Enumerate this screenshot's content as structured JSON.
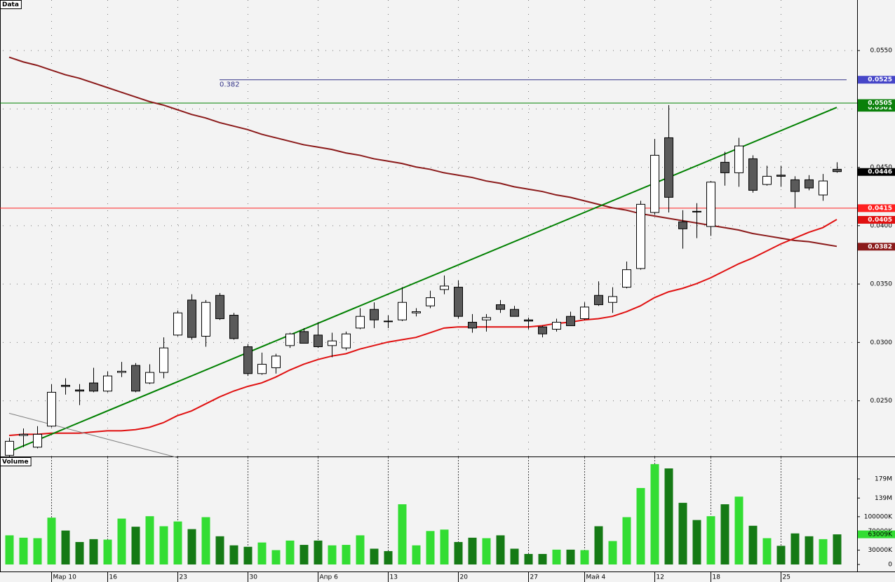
{
  "chart_data": [
    {
      "type": "candlestick",
      "title": "Data",
      "categories": [
        null,
        null,
        null,
        "Мар 10",
        null,
        null,
        null,
        "16",
        null,
        null,
        null,
        null,
        "23",
        null,
        null,
        null,
        null,
        "30",
        null,
        null,
        null,
        null,
        "Апр 6",
        null,
        null,
        null,
        null,
        "13",
        null,
        null,
        null,
        null,
        "20",
        null,
        null,
        null,
        null,
        "27",
        null,
        null,
        null,
        "Май 4",
        null,
        null,
        null,
        null,
        "12",
        null,
        null,
        null,
        "18",
        null,
        null,
        null,
        null,
        "25",
        null,
        null,
        null,
        null
      ],
      "open": [
        0.0203,
        0.022,
        0.021,
        0.0228,
        0.0263,
        0.0259,
        0.0265,
        0.0258,
        0.0274,
        0.028,
        0.0265,
        0.0274,
        0.0306,
        0.0336,
        0.0305,
        0.034,
        0.0323,
        0.0296,
        0.0273,
        0.0278,
        0.0297,
        0.0309,
        0.0306,
        0.0297,
        0.0295,
        0.0312,
        0.0328,
        0.0318,
        0.0319,
        0.0325,
        0.0331,
        0.0345,
        0.0347,
        0.0317,
        0.0319,
        0.0332,
        0.0328,
        0.0319,
        0.0313,
        0.0311,
        0.0322,
        0.032,
        0.034,
        0.0334,
        0.0347,
        0.0363,
        0.0411,
        0.0475,
        0.0403,
        0.0412,
        0.0399,
        0.0454,
        0.0445,
        0.0457,
        0.0435,
        0.0443,
        0.0439,
        0.0439,
        0.0426,
        0.0448
      ],
      "high": [
        0.0218,
        0.0226,
        0.0228,
        0.0264,
        0.0269,
        0.0264,
        0.0278,
        0.0275,
        0.0283,
        0.0282,
        0.0281,
        0.0304,
        0.0327,
        0.0341,
        0.0336,
        0.0342,
        0.0325,
        0.0298,
        0.0291,
        0.029,
        0.0308,
        0.0312,
        0.0317,
        0.0308,
        0.0309,
        0.0329,
        0.0334,
        0.0323,
        0.0347,
        0.0329,
        0.0344,
        0.0357,
        0.0353,
        0.0324,
        0.0324,
        0.0336,
        0.0331,
        0.0321,
        0.0314,
        0.032,
        0.0326,
        0.0334,
        0.0352,
        0.0347,
        0.0369,
        0.0421,
        0.0474,
        0.0503,
        0.0413,
        0.0419,
        0.0438,
        0.0463,
        0.0475,
        0.046,
        0.0451,
        0.0451,
        0.0442,
        0.0443,
        0.0444,
        0.0454
      ],
      "low": [
        0.0202,
        0.021,
        0.0209,
        0.0227,
        0.0255,
        0.0246,
        0.0257,
        0.0257,
        0.027,
        0.0257,
        0.0264,
        0.0269,
        0.0305,
        0.0302,
        0.0296,
        0.0319,
        0.0302,
        0.0271,
        0.0272,
        0.0273,
        0.0295,
        0.0299,
        0.0295,
        0.0287,
        0.0293,
        0.0311,
        0.0312,
        0.0312,
        0.0318,
        0.0322,
        0.0329,
        0.0341,
        0.032,
        0.0308,
        0.0309,
        0.0325,
        0.0322,
        0.0311,
        0.0304,
        0.0309,
        0.0314,
        0.0319,
        0.0331,
        0.0325,
        0.0346,
        0.0362,
        0.0409,
        0.0411,
        0.038,
        0.0389,
        0.0391,
        0.0434,
        0.0433,
        0.0428,
        0.0434,
        0.0433,
        0.0415,
        0.043,
        0.0421,
        0.0445
      ],
      "close": [
        0.0215,
        0.0221,
        0.0221,
        0.0257,
        0.0262,
        0.0258,
        0.0258,
        0.0271,
        0.0275,
        0.0258,
        0.0274,
        0.0295,
        0.0325,
        0.0304,
        0.0334,
        0.032,
        0.0303,
        0.0273,
        0.0281,
        0.0288,
        0.0307,
        0.0299,
        0.0296,
        0.0301,
        0.0307,
        0.0322,
        0.0319,
        0.0318,
        0.0334,
        0.0326,
        0.0338,
        0.0348,
        0.0322,
        0.0312,
        0.0321,
        0.0328,
        0.0322,
        0.0318,
        0.0307,
        0.0317,
        0.0314,
        0.033,
        0.0332,
        0.0339,
        0.0362,
        0.0418,
        0.046,
        0.0424,
        0.0397,
        0.0412,
        0.0437,
        0.0445,
        0.0468,
        0.043,
        0.0442,
        0.0442,
        0.0429,
        0.0432,
        0.0438,
        0.0446
      ],
      "up_color": "#ffffff",
      "down_color": "#5a5a5a",
      "ylim": [
        0.0202,
        0.0593
      ],
      "yticks": [
        {
          "value": 0.025,
          "label": "0.0250"
        },
        {
          "value": 0.03,
          "label": "0.0300"
        },
        {
          "value": 0.035,
          "label": "0.0350"
        },
        {
          "value": 0.04,
          "label": "0.0400"
        },
        {
          "value": 0.045,
          "label": "0.0450"
        },
        {
          "value": 0.05,
          "label": "0.0500"
        },
        {
          "value": 0.055,
          "label": "0.0550"
        }
      ],
      "grid": true,
      "overlays": [
        {
          "color": "#8b1a1a",
          "values": [
            0.0544,
            0.054,
            0.0537,
            0.0533,
            0.0529,
            0.0526,
            0.0522,
            0.0518,
            0.0514,
            0.051,
            0.0506,
            0.0503,
            0.0499,
            0.0495,
            0.0492,
            0.0488,
            0.0485,
            0.0482,
            0.0478,
            0.0475,
            0.0472,
            0.0469,
            0.0467,
            0.0465,
            0.0462,
            0.046,
            0.0457,
            0.0455,
            0.0453,
            0.045,
            0.0448,
            0.0445,
            0.0443,
            0.0441,
            0.0438,
            0.0436,
            0.0433,
            0.0431,
            0.0429,
            0.0426,
            0.0424,
            0.0421,
            0.0418,
            0.0415,
            0.0413,
            0.041,
            0.0408,
            0.0406,
            0.0404,
            0.0402,
            0.04,
            0.0398,
            0.0396,
            0.0393,
            0.0391,
            0.0389,
            0.0387,
            0.0386,
            0.0384,
            0.0382
          ]
        },
        {
          "color": "#e01010",
          "values": [
            0.022,
            0.0221,
            0.0221,
            0.0222,
            0.0222,
            0.0222,
            0.0223,
            0.0224,
            0.0224,
            0.0225,
            0.0227,
            0.0231,
            0.0237,
            0.0241,
            0.0247,
            0.0253,
            0.0258,
            0.0262,
            0.0265,
            0.027,
            0.0276,
            0.0281,
            0.0285,
            0.0288,
            0.029,
            0.0294,
            0.0297,
            0.03,
            0.0302,
            0.0304,
            0.0308,
            0.0312,
            0.0313,
            0.0313,
            0.0313,
            0.0313,
            0.0313,
            0.0313,
            0.0314,
            0.0316,
            0.0317,
            0.0319,
            0.032,
            0.0322,
            0.0326,
            0.0331,
            0.0338,
            0.0343,
            0.0346,
            0.035,
            0.0355,
            0.0361,
            0.0367,
            0.0372,
            0.0378,
            0.0384,
            0.0389,
            0.0394,
            0.0398,
            0.0405
          ]
        }
      ],
      "trend_lines": [
        {
          "color": "#008000",
          "x": [
            0,
            59
          ],
          "values": [
            0.0206,
            0.0501
          ]
        },
        {
          "color": "#808080",
          "x": [
            0,
            12
          ],
          "values": [
            0.0239,
            0.0201
          ]
        }
      ],
      "levels": [
        {
          "value": 0.0505,
          "color": "#008000"
        },
        {
          "value": 0.0415,
          "color": "#ff2020"
        }
      ],
      "fib": {
        "label": "0.382",
        "value": 0.0525,
        "from": 15,
        "color": "#333388"
      },
      "price_labels": [
        {
          "value": 0.0525,
          "label": "0.0525",
          "color": "#4646c8"
        },
        {
          "value": 0.0501,
          "label": "0.0501",
          "color": "#0a800a"
        },
        {
          "value": 0.0505,
          "label": "0.0505",
          "color": "#0a800a"
        },
        {
          "value": 0.0446,
          "label": "0.0446",
          "color": "#000000"
        },
        {
          "value": 0.0415,
          "label": "0.0415",
          "color": "#ff2020"
        },
        {
          "value": 0.0405,
          "label": "0.0405",
          "color": "#e01010"
        },
        {
          "value": 0.0382,
          "label": "0.0382",
          "color": "#8b1a1a"
        }
      ]
    },
    {
      "type": "volume",
      "title": "Volume",
      "values": [
        61000000,
        56000000,
        55000000,
        98000000,
        71000000,
        47000000,
        53000000,
        52000000,
        96000000,
        79000000,
        101000000,
        80000000,
        90000000,
        74000000,
        99000000,
        59000000,
        40000000,
        37000000,
        46000000,
        30000000,
        50000000,
        41000000,
        50000000,
        40000000,
        41000000,
        61000000,
        33000000,
        28000000,
        126000000,
        40000000,
        70000000,
        73000000,
        47000000,
        56000000,
        55000000,
        61000000,
        33000000,
        22000000,
        22000000,
        31000000,
        31000000,
        30000000,
        80000000,
        49000000,
        99000000,
        160000000,
        210000000,
        201000000,
        129000000,
        93000000,
        101000000,
        126000000,
        142000000,
        81000000,
        55000000,
        39000000,
        65000000,
        59000000,
        53000000,
        63009000
      ],
      "up_color": "#33dd33",
      "down_color": "#157a15",
      "ylim": [
        0,
        224500000
      ],
      "yticks": [
        0,
        {
          "value": 30000000,
          "label": "30000K"
        },
        {
          "value": 70000000,
          "label": "70000K"
        },
        {
          "value": 100000000,
          "label": "100000K"
        },
        {
          "value": 139000000,
          "label": "139M"
        },
        {
          "value": 179000000,
          "label": "179M"
        }
      ],
      "last_label": {
        "value": 63009000,
        "label": "63009K",
        "color": "#33dd33"
      }
    }
  ]
}
